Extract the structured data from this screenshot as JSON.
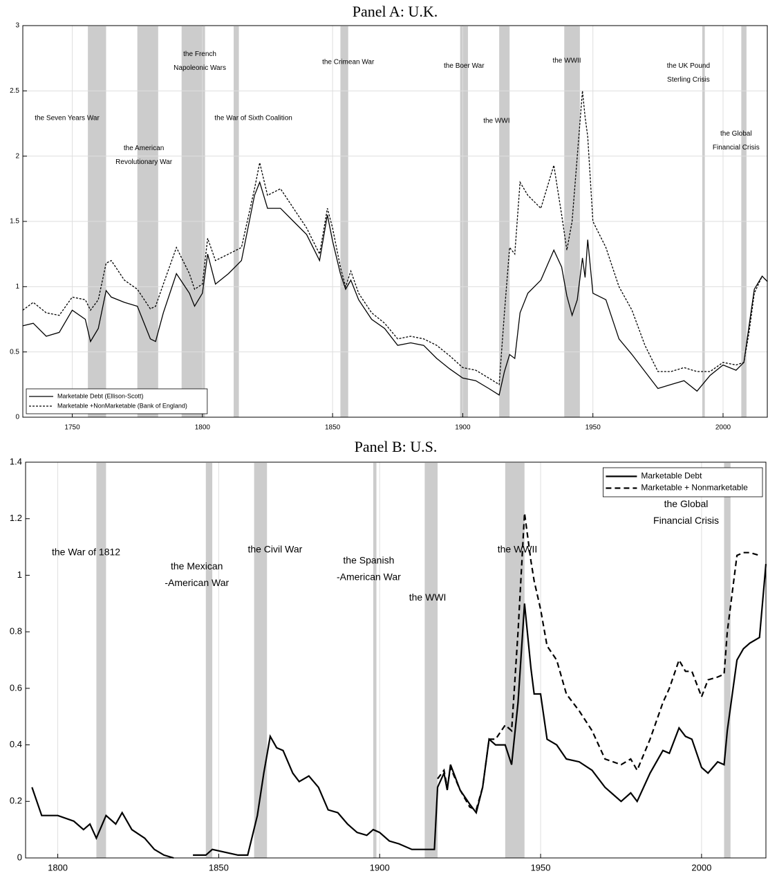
{
  "chart_data": [
    {
      "type": "line",
      "title": "Panel A: U.K.",
      "x": [
        1731,
        1735,
        1740,
        1745,
        1750,
        1755,
        1757,
        1760,
        1763,
        1765,
        1770,
        1775,
        1780,
        1782,
        1785,
        1790,
        1795,
        1797,
        1800,
        1802,
        1805,
        1810,
        1815,
        1820,
        1822,
        1825,
        1830,
        1835,
        1840,
        1845,
        1848,
        1850,
        1853,
        1855,
        1857,
        1860,
        1865,
        1870,
        1875,
        1880,
        1885,
        1890,
        1895,
        1900,
        1905,
        1910,
        1914,
        1916,
        1918,
        1920,
        1922,
        1925,
        1930,
        1935,
        1938,
        1940,
        1942,
        1944,
        1946,
        1947,
        1948,
        1950,
        1955,
        1960,
        1965,
        1970,
        1975,
        1980,
        1985,
        1990,
        1995,
        2000,
        2005,
        2008,
        2010,
        2012,
        2015,
        2017
      ],
      "series": [
        {
          "name": "Marketable Debt (Ellison-Scott)",
          "color": "#000000",
          "style": "solid",
          "values": [
            0.7,
            0.72,
            0.62,
            0.65,
            0.82,
            0.75,
            0.58,
            0.68,
            0.97,
            0.92,
            0.88,
            0.85,
            0.6,
            0.58,
            0.8,
            1.1,
            0.95,
            0.85,
            0.95,
            1.25,
            1.02,
            1.1,
            1.2,
            1.7,
            1.8,
            1.6,
            1.6,
            1.5,
            1.4,
            1.2,
            1.55,
            1.35,
            1.1,
            0.98,
            1.05,
            0.9,
            0.75,
            0.68,
            0.55,
            0.57,
            0.55,
            0.45,
            0.37,
            0.3,
            0.28,
            0.22,
            0.17,
            0.35,
            0.48,
            0.45,
            0.8,
            0.95,
            1.05,
            1.28,
            1.15,
            0.93,
            0.78,
            0.9,
            1.22,
            1.07,
            1.36,
            0.95,
            0.9,
            0.6,
            0.48,
            0.35,
            0.22,
            0.25,
            0.28,
            0.2,
            0.32,
            0.4,
            0.36,
            0.42,
            0.7,
            0.98,
            1.08,
            1.04
          ]
        },
        {
          "name": "Marketable +NonMarketable (Bank of England)",
          "color": "#000000",
          "style": "dashed",
          "values": [
            0.82,
            0.88,
            0.8,
            0.78,
            0.92,
            0.9,
            0.82,
            0.9,
            1.18,
            1.2,
            1.05,
            0.98,
            0.83,
            0.85,
            1.02,
            1.3,
            1.1,
            0.98,
            1.02,
            1.37,
            1.2,
            1.25,
            1.3,
            1.75,
            1.95,
            1.7,
            1.75,
            1.6,
            1.45,
            1.25,
            1.6,
            1.45,
            1.15,
            1.0,
            1.12,
            0.95,
            0.8,
            0.72,
            0.6,
            0.62,
            0.6,
            0.55,
            0.47,
            0.38,
            0.36,
            0.3,
            0.25,
            0.8,
            1.3,
            1.25,
            1.8,
            1.7,
            1.6,
            1.93,
            1.55,
            1.28,
            1.5,
            2.0,
            2.5,
            2.3,
            2.15,
            1.5,
            1.3,
            1.0,
            0.82,
            0.55,
            0.35,
            0.35,
            0.38,
            0.35,
            0.35,
            0.42,
            0.4,
            0.42,
            0.65,
            0.95,
            1.08,
            1.04
          ]
        }
      ],
      "xlim": [
        1731,
        2017
      ],
      "ylim": [
        0,
        3
      ],
      "xticks": [
        1750,
        1800,
        1850,
        1900,
        1950,
        2000
      ],
      "yticks": [
        0,
        0.5,
        1,
        1.5,
        2,
        2.5,
        3
      ],
      "grid": "both",
      "legend": "lower left",
      "shade_color": "#cccccc",
      "shaded_periods": [
        {
          "start": 1756,
          "end": 1763
        },
        {
          "start": 1775,
          "end": 1783
        },
        {
          "start": 1792,
          "end": 1801
        },
        {
          "start": 1812,
          "end": 1814
        },
        {
          "start": 1853,
          "end": 1856
        },
        {
          "start": 1899,
          "end": 1902
        },
        {
          "start": 1914,
          "end": 1918
        },
        {
          "start": 1939,
          "end": 1945
        },
        {
          "start": 1992,
          "end": 1993
        },
        {
          "start": 2007,
          "end": 2009
        }
      ],
      "annotations": [
        {
          "lines": [
            "the Seven Years War"
          ],
          "x": 1748,
          "y": 2.29
        },
        {
          "lines": [
            "the American",
            "Revolutionary War"
          ],
          "x": 1777.5,
          "y": 2.06
        },
        {
          "lines": [
            "the French",
            "Napoleonic Wars"
          ],
          "x": 1799,
          "y": 2.78
        },
        {
          "lines": [
            "the War of Sixth Coalition"
          ],
          "x": 1819.6,
          "y": 2.29
        },
        {
          "lines": [
            "the Crimean War"
          ],
          "x": 1856,
          "y": 2.72
        },
        {
          "lines": [
            "the Boer War"
          ],
          "x": 1900.5,
          "y": 2.69
        },
        {
          "lines": [
            "the WWI"
          ],
          "x": 1913,
          "y": 2.27
        },
        {
          "lines": [
            "the WWII"
          ],
          "x": 1940,
          "y": 2.73
        },
        {
          "lines": [
            "the UK Pound",
            "Sterling Crisis"
          ],
          "x": 1986.7,
          "y": 2.69
        },
        {
          "lines": [
            "the Global",
            "Financial Crisis"
          ],
          "x": 2005,
          "y": 2.17
        }
      ]
    },
    {
      "type": "line",
      "title": "Panel B: U.S.",
      "x": [
        1792,
        1795,
        1800,
        1805,
        1808,
        1810,
        1812,
        1815,
        1818,
        1820,
        1823,
        1827,
        1830,
        1833,
        1836,
        1838,
        1842,
        1846,
        1848,
        1852,
        1856,
        1859,
        1862,
        1864,
        1866,
        1868,
        1870,
        1873,
        1875,
        1878,
        1881,
        1884,
        1887,
        1890,
        1893,
        1896,
        1898,
        1900,
        1903,
        1906,
        1910,
        1914,
        1917,
        1918,
        1920,
        1921,
        1922,
        1925,
        1928,
        1930,
        1932,
        1934,
        1936,
        1939,
        1941,
        1943,
        1945,
        1947,
        1948,
        1950,
        1952,
        1955,
        1958,
        1962,
        1966,
        1970,
        1975,
        1978,
        1980,
        1984,
        1988,
        1990,
        1993,
        1995,
        1997,
        2000,
        2002,
        2005,
        2007,
        2008,
        2011,
        2013,
        2015,
        2018,
        2020
      ],
      "series": [
        {
          "name": "Marketable Debt",
          "color": "#000000",
          "style": "solid",
          "values": [
            0.25,
            0.15,
            0.15,
            0.13,
            0.1,
            0.12,
            0.07,
            0.15,
            0.12,
            0.16,
            0.1,
            0.07,
            0.03,
            0.01,
            0.0,
            null,
            0.01,
            0.01,
            0.03,
            0.02,
            0.01,
            0.01,
            0.15,
            0.3,
            0.43,
            0.39,
            0.38,
            0.3,
            0.27,
            0.29,
            0.25,
            0.17,
            0.16,
            0.12,
            0.09,
            0.08,
            0.1,
            0.09,
            0.06,
            0.05,
            0.03,
            0.03,
            0.03,
            0.25,
            0.3,
            0.24,
            0.33,
            0.24,
            0.19,
            0.16,
            0.25,
            0.42,
            0.4,
            0.4,
            0.33,
            0.55,
            0.9,
            0.67,
            0.58,
            0.58,
            0.42,
            0.4,
            0.35,
            0.34,
            0.31,
            0.25,
            0.2,
            0.23,
            0.2,
            0.3,
            0.38,
            0.37,
            0.46,
            0.43,
            0.42,
            0.32,
            0.3,
            0.34,
            0.33,
            0.45,
            0.7,
            0.74,
            0.76,
            0.78,
            1.04
          ]
        },
        {
          "name": "Marketable + Nonmarketable",
          "color": "#000000",
          "style": "dashed",
          "values": [
            null,
            null,
            null,
            null,
            null,
            null,
            null,
            null,
            null,
            null,
            null,
            null,
            null,
            null,
            null,
            null,
            null,
            null,
            null,
            null,
            null,
            null,
            null,
            null,
            null,
            null,
            null,
            null,
            null,
            null,
            null,
            null,
            null,
            null,
            null,
            null,
            null,
            null,
            null,
            null,
            null,
            null,
            null,
            0.28,
            0.31,
            0.25,
            0.32,
            0.24,
            0.18,
            0.17,
            0.25,
            0.42,
            0.42,
            0.47,
            0.45,
            0.8,
            1.22,
            1.05,
            0.98,
            0.88,
            0.75,
            0.7,
            0.58,
            0.52,
            0.45,
            0.35,
            0.33,
            0.35,
            0.31,
            0.42,
            0.55,
            0.6,
            0.7,
            0.66,
            0.66,
            0.57,
            0.63,
            0.64,
            0.65,
            0.8,
            1.07,
            1.08,
            1.08,
            1.07,
            null
          ]
        }
      ],
      "xlim": [
        1790,
        2020
      ],
      "ylim": [
        0,
        1.4
      ],
      "xticks": [
        1800,
        1850,
        1900,
        1950,
        2000
      ],
      "yticks": [
        0,
        0.2,
        0.4,
        0.6,
        0.8,
        1,
        1.2,
        1.4
      ],
      "grid": "x",
      "legend": "upper right",
      "shade_color": "#cccccc",
      "shaded_periods": [
        {
          "start": 1812,
          "end": 1815
        },
        {
          "start": 1846,
          "end": 1848
        },
        {
          "start": 1861,
          "end": 1865
        },
        {
          "start": 1898,
          "end": 1899
        },
        {
          "start": 1914,
          "end": 1918
        },
        {
          "start": 1939,
          "end": 1945
        },
        {
          "start": 2007,
          "end": 2009
        }
      ],
      "annotations": [
        {
          "lines": [
            "the War of 1812"
          ],
          "x": 1808.8,
          "y": 1.08
        },
        {
          "lines": [
            "the Mexican",
            "-American War"
          ],
          "x": 1843.2,
          "y": 1.03
        },
        {
          "lines": [
            "the Civil War"
          ],
          "x": 1867.5,
          "y": 1.09
        },
        {
          "lines": [
            "the Spanish",
            "-American War"
          ],
          "x": 1896.6,
          "y": 1.05
        },
        {
          "lines": [
            "the WWI"
          ],
          "x": 1914.9,
          "y": 0.92
        },
        {
          "lines": [
            "the WWII"
          ],
          "x": 1942.8,
          "y": 1.09
        },
        {
          "lines": [
            "the Global",
            "Financial Crisis"
          ],
          "x": 1995.2,
          "y": 1.25
        }
      ]
    }
  ]
}
